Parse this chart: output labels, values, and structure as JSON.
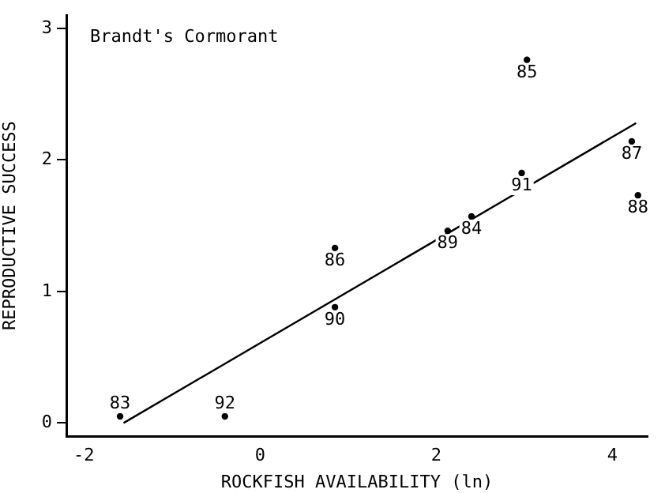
{
  "chart_data": {
    "type": "scatter",
    "title": "Brandt's Cormorant",
    "xlabel": "ROCKFISH AVAILABILITY (ln)",
    "ylabel": "REPRODUCTIVE SUCCESS",
    "xlim": [
      -2.2,
      4.4
    ],
    "xticks": [
      -2,
      0,
      2,
      4
    ],
    "ylim": [
      -0.1,
      3.1
    ],
    "yticks": [
      0,
      1,
      2,
      3
    ],
    "grid": false,
    "legend": false,
    "series": [
      {
        "marker": "circle",
        "color": "#000000",
        "x": [
          -1.59,
          -0.4,
          0.85,
          0.85,
          2.13,
          2.4,
          2.97,
          3.03,
          4.22,
          4.29
        ],
        "values": [
          0.05,
          0.05,
          0.88,
          1.33,
          1.46,
          1.57,
          1.9,
          2.76,
          2.14,
          1.73
        ]
      },
      {
        "type": "line",
        "marker": "none",
        "color": "#000000",
        "x": [
          -1.55,
          4.27
        ],
        "values": [
          0,
          2.28
        ]
      }
    ],
    "annotations": [
      {
        "text": "83",
        "x": -1.59,
        "y": 0.05
      },
      {
        "text": "92",
        "x": -0.4,
        "y": 0.05
      },
      {
        "text": "90",
        "x": 0.85,
        "y": 0.88
      },
      {
        "text": "86",
        "x": 0.85,
        "y": 1.33
      },
      {
        "text": "89",
        "x": 2.13,
        "y": 1.46
      },
      {
        "text": "84",
        "x": 2.4,
        "y": 1.57
      },
      {
        "text": "91",
        "x": 2.97,
        "y": 1.9
      },
      {
        "text": "85",
        "x": 3.03,
        "y": 2.76
      },
      {
        "text": "87",
        "x": 4.22,
        "y": 2.14
      },
      {
        "text": "88",
        "x": 4.29,
        "y": 1.73
      }
    ]
  }
}
